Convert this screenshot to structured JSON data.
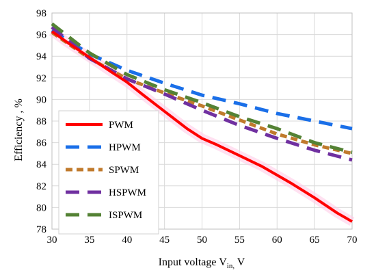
{
  "chart_data": {
    "type": "line",
    "xlabel": "Input voltage V",
    "xlabel_subscript": "in,",
    "xlabel_suffix": " V",
    "ylabel": "Efficiency , %",
    "xlim": [
      30,
      70
    ],
    "ylim": [
      78,
      98
    ],
    "xticks": [
      30,
      35,
      40,
      45,
      50,
      55,
      60,
      65,
      70
    ],
    "yticks": [
      78,
      80,
      82,
      84,
      86,
      88,
      90,
      92,
      94,
      96,
      98
    ],
    "grid": true,
    "legend_position": "left",
    "series": [
      {
        "name": "PWM",
        "color": "#ff0000",
        "dash": "solid",
        "x": [
          30,
          32,
          35,
          38,
          40,
          42,
          45,
          48,
          50,
          52,
          55,
          58,
          60,
          62,
          65,
          68,
          70
        ],
        "y": [
          96.3,
          95.3,
          93.9,
          92.5,
          91.6,
          90.5,
          88.9,
          87.3,
          86.4,
          85.8,
          84.8,
          83.8,
          83.0,
          82.2,
          80.9,
          79.5,
          78.7
        ]
      },
      {
        "name": "HPWM",
        "color": "#1a6fe8",
        "dash": "long",
        "x": [
          30,
          35,
          40,
          45,
          50,
          55,
          60,
          65,
          70
        ],
        "y": [
          96.4,
          94.2,
          92.7,
          91.5,
          90.4,
          89.6,
          88.7,
          88.0,
          87.3
        ]
      },
      {
        "name": "SPWM",
        "color": "#c07a2c",
        "dash": "short",
        "x": [
          30,
          35,
          40,
          45,
          50,
          55,
          60,
          65,
          70
        ],
        "y": [
          96.2,
          93.8,
          91.9,
          90.6,
          89.4,
          88.1,
          86.8,
          85.8,
          85.0
        ]
      },
      {
        "name": "HSPWM",
        "color": "#7030a0",
        "dash": "long",
        "x": [
          30,
          35,
          40,
          45,
          50,
          55,
          60,
          65,
          70
        ],
        "y": [
          96.7,
          93.8,
          91.9,
          90.5,
          89.0,
          87.6,
          86.4,
          85.3,
          84.4
        ]
      },
      {
        "name": "ISPWM",
        "color": "#548235",
        "dash": "long",
        "x": [
          30,
          35,
          40,
          45,
          50,
          55,
          60,
          65,
          70
        ],
        "y": [
          97.0,
          94.3,
          92.3,
          90.9,
          89.7,
          88.4,
          87.3,
          86.0,
          85.1
        ]
      }
    ]
  }
}
